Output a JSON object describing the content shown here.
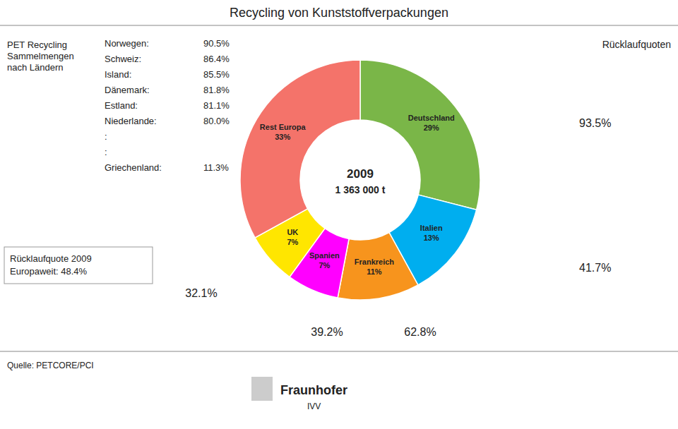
{
  "chart_data": {
    "type": "pie",
    "title": "Recycling von Kunststoffverpackungen",
    "categories": [
      "Deutschland",
      "Italien",
      "Frankreich",
      "Spanien",
      "UK",
      "Rest Europa"
    ],
    "values": [
      29,
      13,
      11,
      7,
      7,
      33
    ],
    "value_labels": [
      "29%",
      "13%",
      "11%",
      "7%",
      "7%",
      "33%"
    ],
    "colors": [
      "#7AB648",
      "#00AEEF",
      "#F7941D",
      "#FF00FF",
      "#FFE600",
      "#F4736A"
    ],
    "data_labels": true,
    "annotations": [
      "PET Recycling",
      "Sammelmengen",
      "nach Ländern",
      "Norwegen:",
      "90.5%",
      "Schweiz:",
      "86.4%",
      "Island:",
      "85.5%",
      "Dänemark:",
      "81.8%",
      "Estland:",
      "81.1%",
      "Niederlande:",
      "80.0%",
      ":",
      ":",
      "Griechenland:",
      "11.3%",
      "Rücklaufquoten",
      "93.5%",
      "41.7%",
      "Rücklaufquote 2009",
      "Europaweit: 48.4%",
      "32.1%",
      "39.2%",
      "62.8%",
      "Quelle: PETCORE/PCI",
      "2009",
      "1 363 000 t",
      "Fraunhofer",
      "IVV"
    ]
  }
}
